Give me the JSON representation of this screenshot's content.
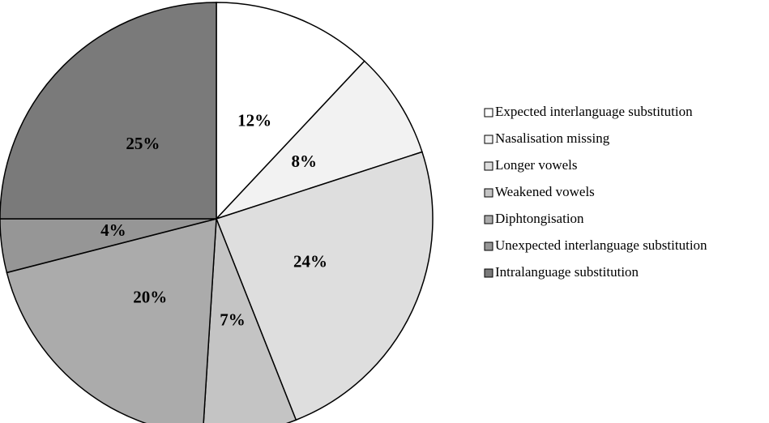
{
  "chart_data": {
    "type": "pie",
    "categories": [
      "Expected interlanguage substitution",
      "Nasalisation missing",
      "Longer vowels",
      "Weakened vowels",
      "Diphtongisation",
      "Unexpected interlanguage substitution",
      "Intralanguage substitution"
    ],
    "values": [
      12,
      8,
      24,
      7,
      20,
      4,
      25
    ],
    "value_labels": [
      "12%",
      "8%",
      "24%",
      "7%",
      "20%",
      "4%",
      "25%"
    ],
    "colors": [
      "#ffffff",
      "#f2f2f2",
      "#dedede",
      "#c4c4c4",
      "#ababab",
      "#969696",
      "#7a7a7a"
    ],
    "legend": "right"
  }
}
